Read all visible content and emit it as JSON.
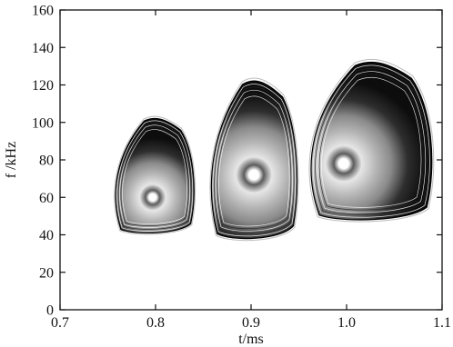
{
  "chart_data": {
    "type": "heatmap",
    "title": "",
    "xlabel": "t/ms",
    "ylabel": "f /kHz",
    "xlim": [
      0.7,
      1.1
    ],
    "ylim": [
      0,
      160
    ],
    "x_ticks": [
      0.7,
      0.8,
      0.9,
      1.0,
      1.1
    ],
    "x_tick_labels": [
      "0.7",
      "0.8",
      "0.9",
      "1.0",
      "1.1"
    ],
    "y_ticks": [
      0,
      20,
      40,
      60,
      80,
      100,
      120,
      140,
      160
    ],
    "y_tick_labels": [
      "0",
      "20",
      "40",
      "60",
      "80",
      "100",
      "120",
      "140",
      "160"
    ],
    "grid": false,
    "colormap": "grayscale",
    "colors": {
      "outer": "#0d0d0d",
      "mid": "#8a8a8a",
      "inner": "#e6e6e6",
      "peak": "#ffffff"
    },
    "blobs": [
      {
        "x_range": [
          0.755,
          0.842
        ],
        "f_range": [
          41,
          102
        ],
        "peak_t": 0.797,
        "peak_f": 60
      },
      {
        "x_range": [
          0.855,
          0.95
        ],
        "f_range": [
          38,
          122
        ],
        "peak_t": 0.903,
        "peak_f": 72
      },
      {
        "x_range": [
          0.958,
          1.092
        ],
        "f_range": [
          48,
          132
        ],
        "peak_t": 0.997,
        "peak_f": 78
      }
    ]
  }
}
